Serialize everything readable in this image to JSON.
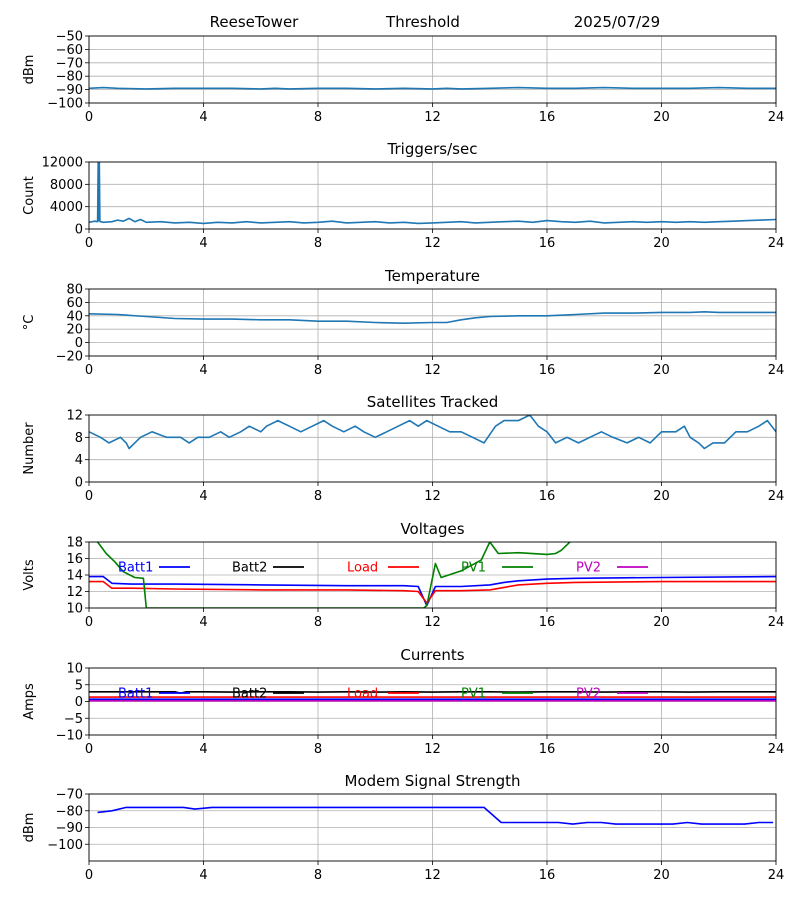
{
  "header": {
    "station": "ReeseTower",
    "mode": "Threshold",
    "date": "2025/07/29"
  },
  "chart_data": [
    {
      "type": "line",
      "title": "",
      "xlabel": "",
      "ylabel": "dBm",
      "xlim": [
        0,
        24
      ],
      "ylim": [
        -100,
        -50
      ],
      "xticks": [
        0,
        4,
        8,
        12,
        16,
        20,
        24
      ],
      "yticks": [
        -100,
        -90,
        -80,
        -70,
        -60,
        -50
      ],
      "grid": true,
      "colors": [
        "#1f77b4"
      ],
      "series": [
        {
          "x": [
            0,
            0.5,
            1,
            2,
            3,
            4,
            5,
            6,
            6.5,
            7,
            8,
            9,
            10,
            11,
            12,
            12.5,
            13,
            14,
            15,
            16,
            17,
            18,
            19,
            20,
            21,
            22,
            23,
            24
          ],
          "y": [
            -89,
            -88.5,
            -89,
            -89.5,
            -89,
            -89,
            -89,
            -89.5,
            -89,
            -89.5,
            -89,
            -89,
            -89.5,
            -89,
            -89.5,
            -89,
            -89.5,
            -89,
            -88.5,
            -89,
            -89,
            -88.5,
            -89,
            -89,
            -89,
            -88.5,
            -89,
            -89
          ]
        }
      ]
    },
    {
      "type": "line",
      "title": "Triggers/sec",
      "xlabel": "",
      "ylabel": "Count",
      "xlim": [
        0,
        24
      ],
      "ylim": [
        0,
        12000
      ],
      "xticks": [
        0,
        4,
        8,
        12,
        16,
        20,
        24
      ],
      "yticks": [
        0,
        4000,
        8000,
        12000
      ],
      "grid": true,
      "colors": [
        "#1f77b4"
      ],
      "series": [
        {
          "x": [
            0,
            0.2,
            0.3,
            0.32,
            0.34,
            0.36,
            0.38,
            0.4,
            0.5,
            0.8,
            1.0,
            1.2,
            1.4,
            1.6,
            1.8,
            2.0,
            2.5,
            3.0,
            3.5,
            4.0,
            4.5,
            5.0,
            5.5,
            6.0,
            6.5,
            7.0,
            7.5,
            8.0,
            8.5,
            9.0,
            9.5,
            10.0,
            10.5,
            11.0,
            11.5,
            12.0,
            12.5,
            13.0,
            13.5,
            14.0,
            14.5,
            15.0,
            15.5,
            16.0,
            16.5,
            17.0,
            17.5,
            18.0,
            18.5,
            19.0,
            19.5,
            20.0,
            20.5,
            21.0,
            21.5,
            22.0,
            22.5,
            23.0,
            23.5,
            24.0
          ],
          "y": [
            1200,
            1400,
            1300,
            12200,
            1500,
            12200,
            1400,
            1300,
            1200,
            1300,
            1600,
            1400,
            1900,
            1300,
            1700,
            1200,
            1300,
            1100,
            1200,
            1000,
            1200,
            1100,
            1300,
            1100,
            1200,
            1300,
            1100,
            1200,
            1400,
            1100,
            1200,
            1300,
            1100,
            1200,
            1000,
            1100,
            1200,
            1300,
            1100,
            1200,
            1300,
            1400,
            1200,
            1500,
            1300,
            1200,
            1400,
            1100,
            1200,
            1300,
            1200,
            1300,
            1200,
            1300,
            1200,
            1300,
            1400,
            1500,
            1600,
            1700
          ]
        }
      ]
    },
    {
      "type": "line",
      "title": "Temperature",
      "xlabel": "",
      "ylabel": "°C",
      "xlim": [
        0,
        24
      ],
      "ylim": [
        -20,
        80
      ],
      "xticks": [
        0,
        4,
        8,
        12,
        16,
        20,
        24
      ],
      "yticks": [
        -20,
        0,
        20,
        40,
        60,
        80
      ],
      "grid": true,
      "colors": [
        "#1f77b4"
      ],
      "series": [
        {
          "x": [
            0,
            1,
            2,
            3,
            4,
            5,
            6,
            7,
            8,
            9,
            10,
            11,
            12,
            12.5,
            13,
            13.5,
            14,
            15,
            16,
            17,
            18,
            19,
            20,
            21,
            21.5,
            22,
            23,
            24
          ],
          "y": [
            43,
            42,
            39,
            36,
            35,
            35,
            34,
            34,
            32,
            32,
            30,
            29,
            30,
            30,
            34,
            37,
            39,
            40,
            40,
            42,
            44,
            44,
            45,
            45,
            46,
            45,
            45,
            45
          ]
        }
      ]
    },
    {
      "type": "line",
      "title": "Satellites Tracked",
      "xlabel": "",
      "ylabel": "Number",
      "xlim": [
        0,
        24
      ],
      "ylim": [
        0,
        12
      ],
      "xticks": [
        0,
        4,
        8,
        12,
        16,
        20,
        24
      ],
      "yticks": [
        0,
        4,
        8,
        12
      ],
      "grid": true,
      "colors": [
        "#1f77b4"
      ],
      "series": [
        {
          "x": [
            0,
            0.4,
            0.7,
            1.1,
            1.3,
            1.4,
            1.6,
            1.8,
            2.2,
            2.7,
            3.2,
            3.5,
            3.8,
            4.2,
            4.6,
            4.9,
            5.3,
            5.6,
            6.0,
            6.2,
            6.6,
            7.0,
            7.4,
            7.8,
            8.2,
            8.5,
            8.9,
            9.3,
            9.6,
            10.0,
            10.4,
            10.8,
            11.2,
            11.5,
            11.8,
            12.2,
            12.6,
            13.0,
            13.4,
            13.8,
            14.2,
            14.5,
            15.0,
            15.4,
            15.7,
            16.0,
            16.3,
            16.7,
            17.1,
            17.5,
            17.9,
            18.3,
            18.8,
            19.2,
            19.6,
            20.0,
            20.5,
            20.8,
            21.0,
            21.3,
            21.5,
            21.8,
            22.2,
            22.6,
            23.0,
            23.4,
            23.7,
            24.0
          ],
          "y": [
            9,
            8,
            7,
            8,
            7,
            6,
            7,
            8,
            9,
            8,
            8,
            7,
            8,
            8,
            9,
            8,
            9,
            10,
            9,
            10,
            11,
            10,
            9,
            10,
            11,
            10,
            9,
            10,
            9,
            8,
            9,
            10,
            11,
            10,
            11,
            10,
            9,
            9,
            8,
            7,
            10,
            11,
            11,
            12,
            10,
            9,
            7,
            8,
            7,
            8,
            9,
            8,
            7,
            8,
            7,
            9,
            9,
            10,
            8,
            7,
            6,
            7,
            7,
            9,
            9,
            10,
            11,
            9
          ]
        }
      ]
    },
    {
      "type": "line",
      "title": "Voltages",
      "xlabel": "",
      "ylabel": "Volts",
      "xlim": [
        0,
        24
      ],
      "ylim": [
        10,
        18
      ],
      "xticks": [
        0,
        4,
        8,
        12,
        16,
        20,
        24
      ],
      "yticks": [
        10,
        12,
        14,
        16,
        18
      ],
      "grid": true,
      "legend": "top",
      "series": [
        {
          "name": "Batt1",
          "color": "#0000ff",
          "x": [
            0,
            0.5,
            0.8,
            1.5,
            3,
            6,
            9,
            11,
            11.5,
            11.8,
            12.1,
            13,
            14,
            14.5,
            15,
            16,
            17,
            20,
            24
          ],
          "y": [
            13.8,
            13.8,
            13.0,
            12.9,
            12.9,
            12.8,
            12.7,
            12.7,
            12.6,
            10.3,
            12.6,
            12.6,
            12.8,
            13.1,
            13.3,
            13.5,
            13.6,
            13.7,
            13.8
          ]
        },
        {
          "name": "Batt2",
          "color": "#000000",
          "x": [],
          "y": []
        },
        {
          "name": "Load",
          "color": "#ff0000",
          "x": [
            0,
            0.5,
            0.8,
            1.5,
            3,
            6,
            9,
            11,
            11.5,
            11.8,
            12.1,
            13,
            14,
            14.5,
            15,
            16,
            17,
            20,
            24
          ],
          "y": [
            13.2,
            13.2,
            12.4,
            12.4,
            12.3,
            12.2,
            12.2,
            12.1,
            12.0,
            10.6,
            12.1,
            12.1,
            12.2,
            12.5,
            12.8,
            13.0,
            13.1,
            13.2,
            13.2
          ]
        },
        {
          "name": "PV1",
          "color": "#008000",
          "x": [
            0,
            0.3,
            0.6,
            0.9,
            1.2,
            1.6,
            1.9,
            2.0,
            11.7,
            11.8,
            12.1,
            12.3,
            13.0,
            13.7,
            14.0,
            14.3,
            15.0,
            16.0,
            16.3,
            16.5,
            16.8
          ],
          "y": [
            18.6,
            18.0,
            16.6,
            15.6,
            14.4,
            13.7,
            13.6,
            10.0,
            10.0,
            10.3,
            15.4,
            13.7,
            14.5,
            15.8,
            18.0,
            16.6,
            16.7,
            16.5,
            16.6,
            17.0,
            18.0
          ]
        },
        {
          "name": "PV2",
          "color": "#bf00bf",
          "x": [],
          "y": []
        }
      ]
    },
    {
      "type": "line",
      "title": "Currents",
      "xlabel": "",
      "ylabel": "Amps",
      "xlim": [
        0,
        24
      ],
      "ylim": [
        -10,
        10
      ],
      "xticks": [
        0,
        4,
        8,
        12,
        16,
        20,
        24
      ],
      "yticks": [
        -10,
        -5,
        0,
        5,
        10
      ],
      "grid": true,
      "legend": "top",
      "series": [
        {
          "name": "Batt1",
          "color": "#0000ff",
          "x": [
            0,
            24
          ],
          "y": [
            0.7,
            0.7
          ]
        },
        {
          "name": "Batt2",
          "color": "#000000",
          "x": [
            0,
            1,
            2,
            3,
            3.2,
            3.4,
            4,
            5,
            6,
            7,
            8,
            9,
            10,
            11,
            12,
            13,
            14,
            15,
            16,
            17,
            18,
            19,
            20,
            21,
            22,
            23,
            24
          ],
          "y": [
            2.9,
            2.9,
            2.9,
            2.9,
            2.5,
            2.9,
            2.9,
            2.8,
            2.9,
            2.9,
            2.8,
            2.9,
            2.8,
            2.9,
            2.8,
            2.9,
            2.9,
            2.8,
            2.9,
            2.9,
            2.8,
            2.9,
            2.9,
            2.8,
            2.9,
            2.9,
            2.9
          ]
        },
        {
          "name": "Load",
          "color": "#ff0000",
          "x": [
            0,
            24
          ],
          "y": [
            1.3,
            1.3
          ]
        },
        {
          "name": "PV1",
          "color": "#008000",
          "x": [],
          "y": []
        },
        {
          "name": "PV2",
          "color": "#bf00bf",
          "x": [
            0,
            24
          ],
          "y": [
            0.2,
            0.2
          ]
        }
      ]
    },
    {
      "type": "line",
      "title": "Modem Signal Strength",
      "xlabel": "",
      "ylabel": "dBm",
      "xlim": [
        0,
        24
      ],
      "ylim": [
        -110,
        -70
      ],
      "xticks": [
        0,
        4,
        8,
        12,
        16,
        20,
        24
      ],
      "yticks": [
        -100,
        -90,
        -80,
        -70
      ],
      "grid": true,
      "colors": [
        "#0000ff"
      ],
      "series": [
        {
          "x": [
            0.3,
            0.8,
            1.3,
            3.3,
            3.7,
            4.3,
            13.8,
            14.4,
            16.4,
            16.9,
            17.4,
            17.9,
            18.4,
            20.4,
            20.9,
            21.4,
            22.9,
            23.4,
            23.9
          ],
          "y": [
            -81,
            -80,
            -78,
            -78,
            -79,
            -78,
            -78,
            -87,
            -87,
            -88,
            -87,
            -87,
            -88,
            -88,
            -87,
            -88,
            -88,
            -87,
            -87
          ]
        }
      ]
    }
  ]
}
